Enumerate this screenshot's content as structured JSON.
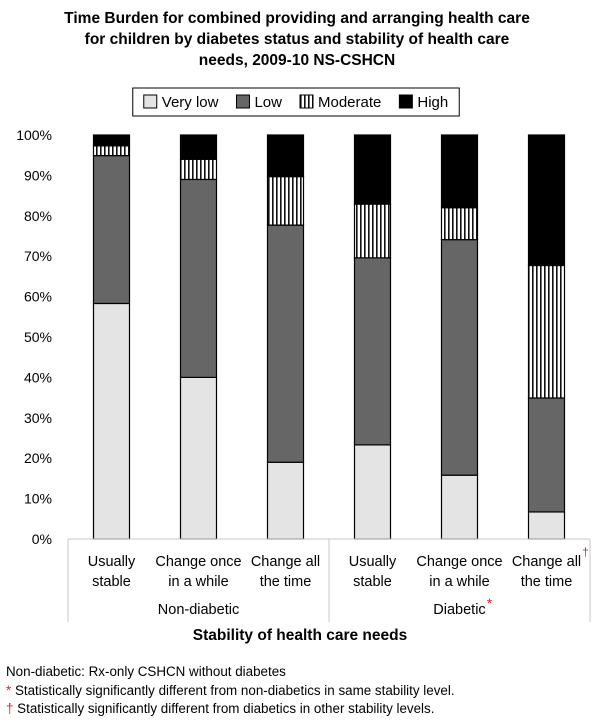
{
  "chart_data": {
    "type": "bar",
    "stacked": true,
    "title_lines": [
      "Time Burden for combined providing and arranging health care",
      "for children by diabetes status and stability of health care",
      "needs, 2009-10 NS-CSHCN"
    ],
    "xlabel": "Stability of health care needs",
    "ylabel": "",
    "ylim": [
      0,
      100
    ],
    "y_ticks": [
      "0%",
      "10%",
      "20%",
      "30%",
      "40%",
      "50%",
      "60%",
      "70%",
      "80%",
      "90%",
      "100%"
    ],
    "legend_position": "top-center",
    "categories": [
      {
        "line1": "Usually",
        "line2": "stable",
        "mark": ""
      },
      {
        "line1": "Change once",
        "line2": "in a while",
        "mark": ""
      },
      {
        "line1": "Change all",
        "line2": "the time",
        "mark": ""
      },
      {
        "line1": "Usually",
        "line2": "stable",
        "mark": ""
      },
      {
        "line1": "Change once",
        "line2": "in a while",
        "mark": ""
      },
      {
        "line1": "Change all",
        "line2": "the time",
        "mark": "†"
      }
    ],
    "groups": [
      {
        "label": "Non-diabetic",
        "mark": "",
        "from": 0,
        "to": 2
      },
      {
        "label": "Diabetic",
        "mark": "*",
        "from": 3,
        "to": 5
      }
    ],
    "series": [
      {
        "name": "Very low",
        "pattern": "light-gray",
        "values": [
          58.3,
          40.0,
          19.0,
          23.3,
          15.8,
          6.7
        ]
      },
      {
        "name": "Low",
        "pattern": "dark-gray",
        "values": [
          36.6,
          49.0,
          58.7,
          46.3,
          58.3,
          28.2
        ]
      },
      {
        "name": "Moderate",
        "pattern": "vertical-stripes",
        "values": [
          2.4,
          5.0,
          12.0,
          13.3,
          7.9,
          32.8
        ]
      },
      {
        "name": "High",
        "pattern": "black",
        "values": [
          2.7,
          6.0,
          10.3,
          17.1,
          18.0,
          32.3
        ]
      }
    ],
    "colors": {
      "very_low": "#e4e4e4",
      "low": "#666666",
      "moderate_stripe": "#111111",
      "high": "#000000"
    }
  },
  "footnotes": [
    {
      "mark": "",
      "text": "Non-diabetic: Rx-only CSHCN without diabetes"
    },
    {
      "mark": "*",
      "text": " Statistically significantly different from non-diabetics in same stability level."
    },
    {
      "mark": "†",
      "text": " Statistically significantly different from diabetics in other stability levels."
    }
  ]
}
